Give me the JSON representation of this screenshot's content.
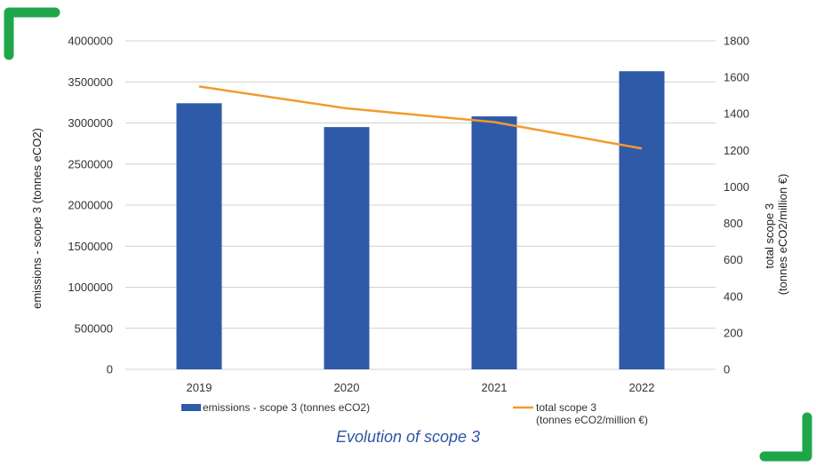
{
  "caption": "Evolution of scope 3",
  "colors": {
    "bar": "#2f5aa8",
    "line": "#f39a2e",
    "corner": "#1fa64a",
    "grid": "#d0d0d0"
  },
  "chart_data": {
    "type": "bar",
    "categories": [
      "2019",
      "2020",
      "2021",
      "2022"
    ],
    "series": [
      {
        "name": "emissions - scope 3 (tonnes eCO2)",
        "type": "bar",
        "axis": "left",
        "values": [
          3240000,
          2950000,
          3080000,
          3630000
        ]
      },
      {
        "name": "total scope 3 (tonnes eCO2/million €)",
        "type": "line",
        "axis": "right",
        "values": [
          1550,
          1430,
          1355,
          1210
        ]
      }
    ],
    "ylabel": "emissions - scope 3 (tonnes eCO2)",
    "y2label_lines": [
      "total scope 3",
      "(tonnes eCO2/million €)"
    ],
    "legend_line_lines": [
      "total scope 3",
      "(tonnes eCO2/million €)"
    ],
    "ylim": [
      0,
      4000000
    ],
    "y2lim": [
      0,
      1800
    ],
    "yticks": [
      "0",
      "500000",
      "1000000",
      "1500000",
      "2000000",
      "2500000",
      "3000000",
      "3500000",
      "4000000"
    ],
    "y2ticks": [
      "0",
      "200",
      "400",
      "600",
      "800",
      "1000",
      "1200",
      "1400",
      "1600",
      "1800"
    ],
    "grid": true,
    "legend_position": "bottom"
  }
}
